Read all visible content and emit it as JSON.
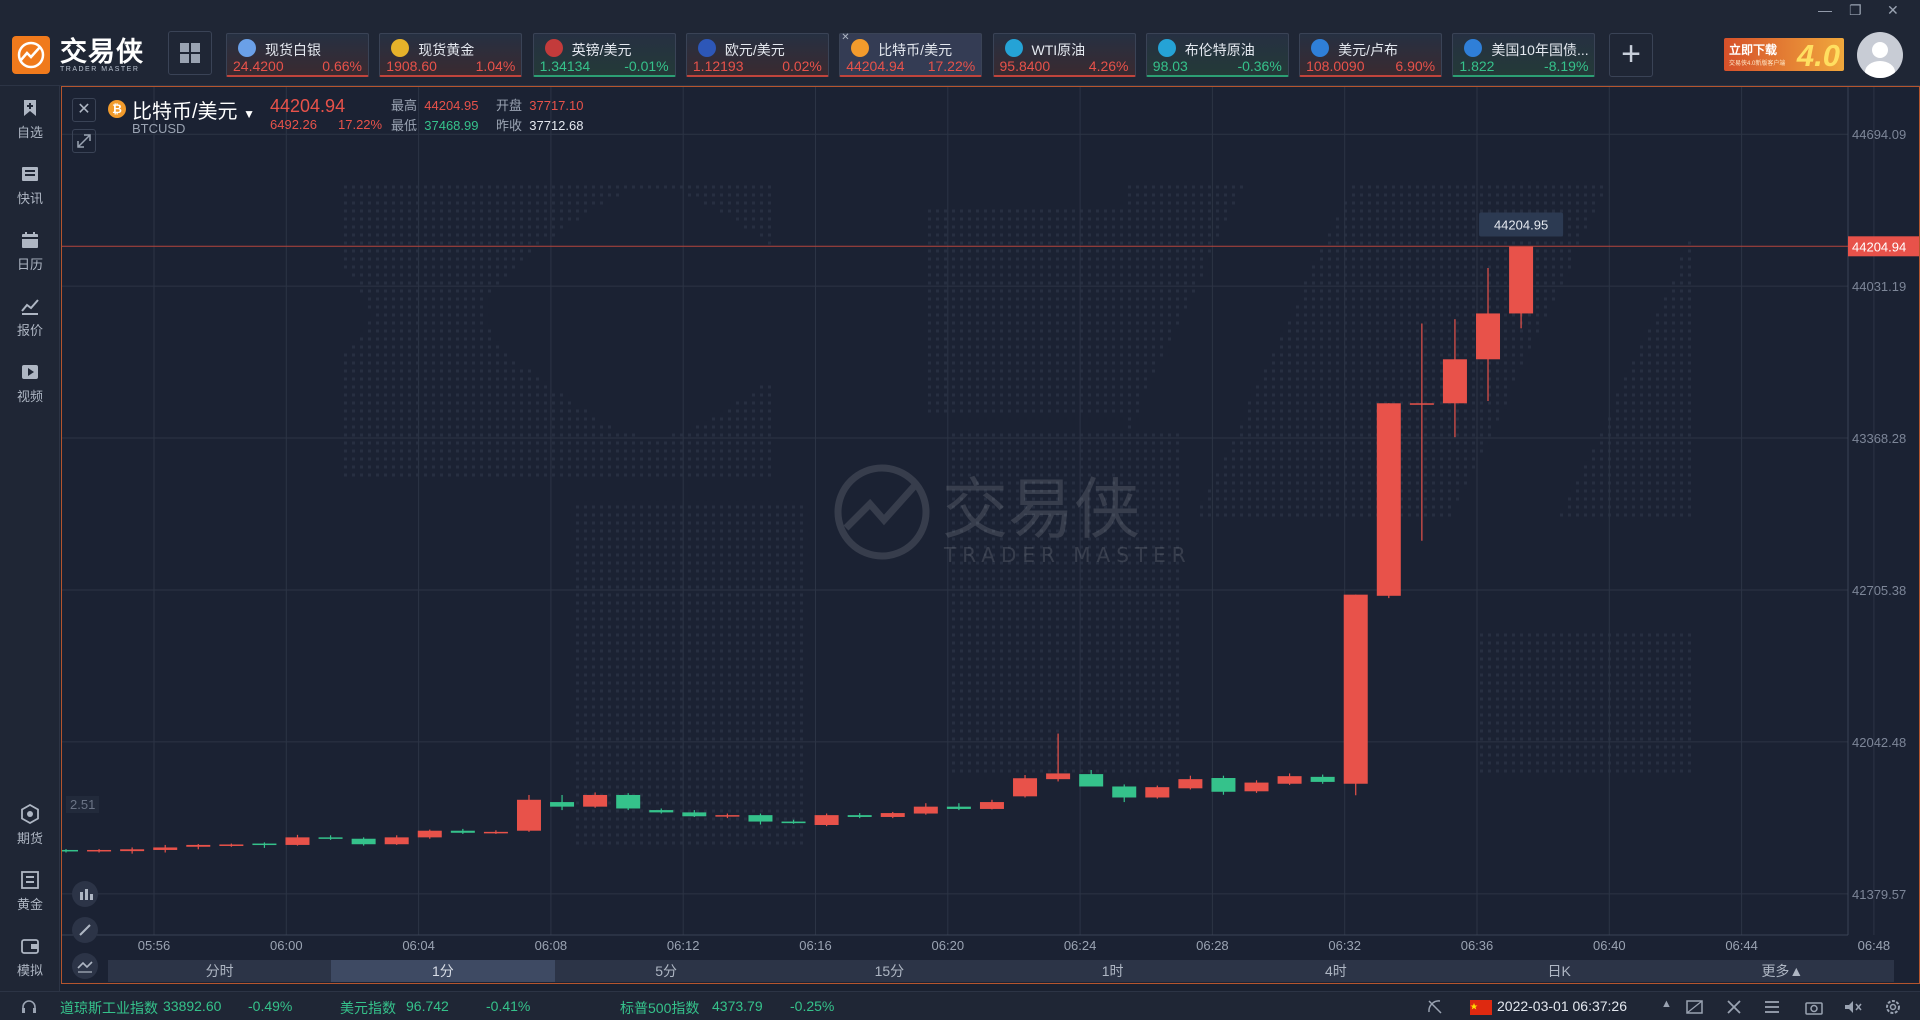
{
  "app": {
    "logo_cn": "交易侠",
    "logo_en": "TRADER MASTER",
    "promo_text": "立即下载",
    "promo_sub": "交易侠4.0新版客户端",
    "promo_big": "4.0"
  },
  "tiles": [
    {
      "name": "现货白银",
      "price": "24.4200",
      "change": "0.66%",
      "dir": "up",
      "icon_color": "#6aa0e8"
    },
    {
      "name": "现货黄金",
      "price": "1908.60",
      "change": "1.04%",
      "dir": "up",
      "icon_color": "#e6b22a"
    },
    {
      "name": "英镑/美元",
      "price": "1.34134",
      "change": "-0.01%",
      "dir": "down",
      "icon_color": "#c33b3b"
    },
    {
      "name": "欧元/美元",
      "price": "1.12193",
      "change": "0.02%",
      "dir": "up",
      "icon_color": "#2d57b8"
    },
    {
      "name": "比特币/美元",
      "price": "44204.94",
      "change": "17.22%",
      "dir": "up",
      "icon_color": "#f29b2c",
      "active": true
    },
    {
      "name": "WTI原油",
      "price": "95.8400",
      "change": "4.26%",
      "dir": "up",
      "icon_color": "#25a3d6"
    },
    {
      "name": "布伦特原油",
      "price": "98.03",
      "change": "-0.36%",
      "dir": "down",
      "icon_color": "#25a3d6"
    },
    {
      "name": "美元/卢布",
      "price": "108.0090",
      "change": "6.90%",
      "dir": "up",
      "icon_color": "#2f7fd8"
    },
    {
      "name": "美国10年国债...",
      "price": "1.822",
      "change": "-8.19%",
      "dir": "down",
      "icon_color": "#2f7fd8"
    }
  ],
  "sidebar": {
    "top_items": [
      {
        "label": "自选",
        "icon": "bookmark-icon"
      },
      {
        "label": "快讯",
        "icon": "news-icon"
      },
      {
        "label": "日历",
        "icon": "calendar-icon"
      },
      {
        "label": "报价",
        "icon": "quote-chart-icon"
      },
      {
        "label": "视频",
        "icon": "video-icon"
      }
    ],
    "bottom_items": [
      {
        "label": "期货",
        "icon": "futures-icon"
      },
      {
        "label": "黄金",
        "icon": "gold-icon"
      },
      {
        "label": "模拟",
        "icon": "simulate-icon"
      }
    ]
  },
  "symbol": {
    "name": "比特币/美元",
    "code": "BTCUSD",
    "price": "44204.94",
    "change": "6492.26",
    "change_pct": "17.22%",
    "high_label": "最高",
    "high": "44204.95",
    "open_label": "开盘",
    "open": "37717.10",
    "low_label": "最低",
    "low": "37468.99",
    "prev_label": "昨收",
    "prev": "37712.68",
    "left_value": "2.51"
  },
  "chart_data": {
    "type": "candlestick",
    "y_ticks": [
      41379.57,
      42042.48,
      42705.38,
      43368.28,
      44031.19,
      44694.09
    ],
    "ylim": [
      41200,
      44900
    ],
    "last_price": 44204.94,
    "tooltip": "44204.95",
    "x_labels": [
      "05:56",
      "06:00",
      "06:04",
      "06:08",
      "06:12",
      "06:16",
      "06:20",
      "06:24",
      "06:28",
      "06:32",
      "06:36",
      "06:40",
      "06:44",
      "06:48"
    ],
    "candles": [
      {
        "o": 41571,
        "h": 41575,
        "l": 41560,
        "c": 41566
      },
      {
        "o": 41569,
        "h": 41575,
        "l": 41560,
        "c": 41571
      },
      {
        "o": 41566,
        "h": 41582,
        "l": 41555,
        "c": 41574
      },
      {
        "o": 41571,
        "h": 41593,
        "l": 41560,
        "c": 41582
      },
      {
        "o": 41585,
        "h": 41597,
        "l": 41574,
        "c": 41593
      },
      {
        "o": 41593,
        "h": 41599,
        "l": 41585,
        "c": 41595
      },
      {
        "o": 41599,
        "h": 41604,
        "l": 41580,
        "c": 41593
      },
      {
        "o": 41593,
        "h": 41637,
        "l": 41590,
        "c": 41626
      },
      {
        "o": 41626,
        "h": 41635,
        "l": 41615,
        "c": 41620
      },
      {
        "o": 41620,
        "h": 41626,
        "l": 41590,
        "c": 41596
      },
      {
        "o": 41596,
        "h": 41635,
        "l": 41593,
        "c": 41626
      },
      {
        "o": 41626,
        "h": 41660,
        "l": 41620,
        "c": 41655
      },
      {
        "o": 41655,
        "h": 41663,
        "l": 41641,
        "c": 41646
      },
      {
        "o": 41646,
        "h": 41657,
        "l": 41641,
        "c": 41650
      },
      {
        "o": 41655,
        "h": 41811,
        "l": 41650,
        "c": 41790
      },
      {
        "o": 41780,
        "h": 41811,
        "l": 41745,
        "c": 41760
      },
      {
        "o": 41760,
        "h": 41822,
        "l": 41755,
        "c": 41811
      },
      {
        "o": 41811,
        "h": 41819,
        "l": 41745,
        "c": 41752
      },
      {
        "o": 41745,
        "h": 41752,
        "l": 41730,
        "c": 41735
      },
      {
        "o": 41735,
        "h": 41745,
        "l": 41715,
        "c": 41718
      },
      {
        "o": 41718,
        "h": 41730,
        "l": 41710,
        "c": 41723
      },
      {
        "o": 41723,
        "h": 41730,
        "l": 41682,
        "c": 41695
      },
      {
        "o": 41695,
        "h": 41703,
        "l": 41685,
        "c": 41688
      },
      {
        "o": 41680,
        "h": 41730,
        "l": 41675,
        "c": 41723
      },
      {
        "o": 41723,
        "h": 41732,
        "l": 41710,
        "c": 41715
      },
      {
        "o": 41715,
        "h": 41737,
        "l": 41710,
        "c": 41732
      },
      {
        "o": 41730,
        "h": 41775,
        "l": 41725,
        "c": 41760
      },
      {
        "o": 41760,
        "h": 41775,
        "l": 41745,
        "c": 41750
      },
      {
        "o": 41750,
        "h": 41790,
        "l": 41748,
        "c": 41780
      },
      {
        "o": 41805,
        "h": 41898,
        "l": 41800,
        "c": 41884
      },
      {
        "o": 41880,
        "h": 42079,
        "l": 41870,
        "c": 41905
      },
      {
        "o": 41902,
        "h": 41920,
        "l": 41850,
        "c": 41848
      },
      {
        "o": 41848,
        "h": 41857,
        "l": 41780,
        "c": 41800
      },
      {
        "o": 41800,
        "h": 41852,
        "l": 41795,
        "c": 41845
      },
      {
        "o": 41840,
        "h": 41895,
        "l": 41835,
        "c": 41880
      },
      {
        "o": 41885,
        "h": 41895,
        "l": 41812,
        "c": 41825
      },
      {
        "o": 41827,
        "h": 41875,
        "l": 41820,
        "c": 41865
      },
      {
        "o": 41860,
        "h": 41905,
        "l": 41855,
        "c": 41893
      },
      {
        "o": 41890,
        "h": 41900,
        "l": 41860,
        "c": 41868
      },
      {
        "o": 41860,
        "h": 42685,
        "l": 41810,
        "c": 42685
      },
      {
        "o": 42680,
        "h": 43520,
        "l": 42670,
        "c": 43520
      },
      {
        "o": 43520,
        "h": 43868,
        "l": 42920,
        "c": 43520
      },
      {
        "o": 43520,
        "h": 43887,
        "l": 43372,
        "c": 43712
      },
      {
        "o": 43712,
        "h": 44110,
        "l": 43530,
        "c": 43912
      },
      {
        "o": 43912,
        "h": 44204,
        "l": 43847,
        "c": 44204
      }
    ]
  },
  "timeframes": [
    "分时",
    "1分",
    "5分",
    "15分",
    "1时",
    "4时",
    "日K",
    "更多▲"
  ],
  "active_timeframe": 1,
  "bottombar": {
    "dow_label": "道琼斯工业指数",
    "dow_value": "33892.60",
    "dow_chg": "-0.49%",
    "usd_label": "美元指数",
    "usd_value": "96.742",
    "usd_chg": "-0.41%",
    "sp_label": "标普500指数",
    "sp_value": "4373.79",
    "sp_chg": "-0.25%",
    "datetime": "2022-03-01 06:37:26"
  },
  "colors": {
    "up": "#e8524a",
    "down": "#35c28b",
    "accent": "#f07a1c"
  }
}
